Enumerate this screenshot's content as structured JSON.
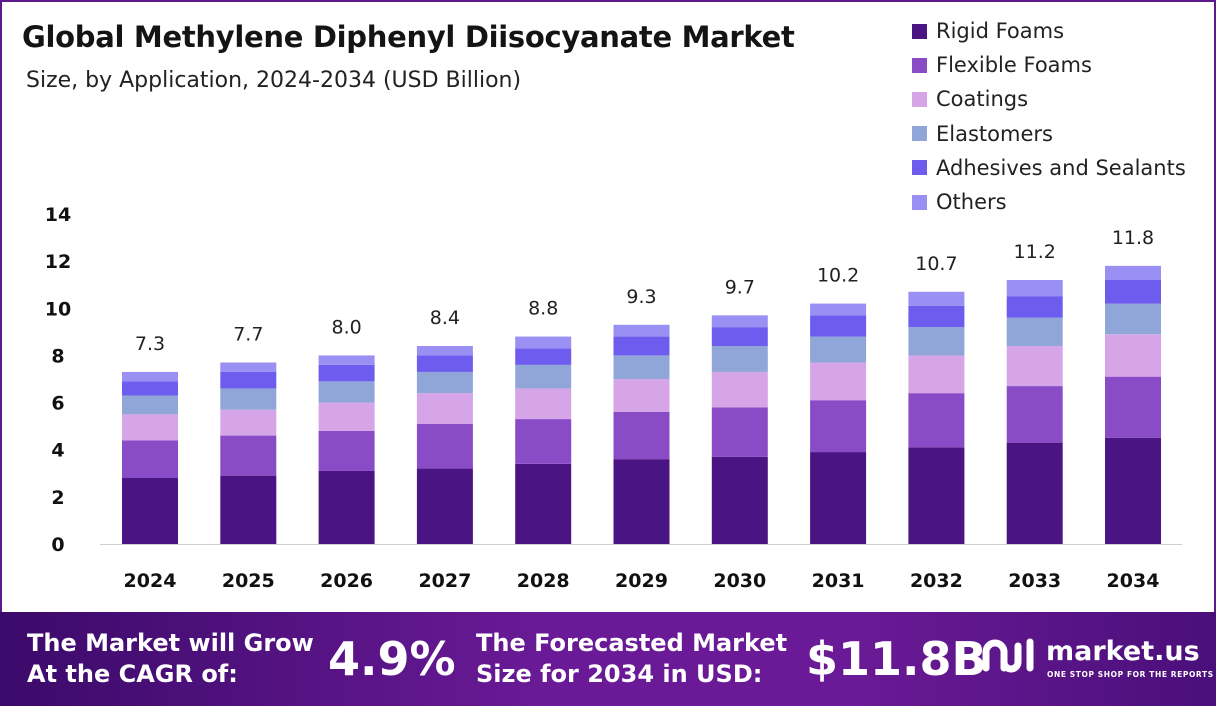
{
  "header": {
    "title": "Global Methylene Diphenyl Diisocyanate Market",
    "subtitle": "Size, by Application, 2024-2034 (USD Billion)"
  },
  "chart_data": {
    "type": "bar",
    "stacked": true,
    "categories": [
      "2024",
      "2025",
      "2026",
      "2027",
      "2028",
      "2029",
      "2030",
      "2031",
      "2032",
      "2033",
      "2034"
    ],
    "series": [
      {
        "name": "Rigid Foams",
        "color": "#4a1582",
        "values": [
          2.8,
          2.9,
          3.1,
          3.2,
          3.4,
          3.6,
          3.7,
          3.9,
          4.1,
          4.3,
          4.5
        ]
      },
      {
        "name": "Flexible Foams",
        "color": "#8a4cc6",
        "values": [
          1.6,
          1.7,
          1.7,
          1.9,
          1.9,
          2.0,
          2.1,
          2.2,
          2.3,
          2.4,
          2.6
        ]
      },
      {
        "name": "Coatings",
        "color": "#d6a5e8",
        "values": [
          1.1,
          1.1,
          1.2,
          1.3,
          1.3,
          1.4,
          1.5,
          1.6,
          1.6,
          1.7,
          1.8
        ]
      },
      {
        "name": "Elastomers",
        "color": "#91a6d8",
        "values": [
          0.8,
          0.9,
          0.9,
          0.9,
          1.0,
          1.0,
          1.1,
          1.1,
          1.2,
          1.2,
          1.3
        ]
      },
      {
        "name": "Adhesives and Sealants",
        "color": "#6d5cee",
        "values": [
          0.6,
          0.7,
          0.7,
          0.7,
          0.7,
          0.8,
          0.8,
          0.9,
          0.9,
          0.9,
          1.0
        ]
      },
      {
        "name": "Others",
        "color": "#9a8ff2",
        "values": [
          0.4,
          0.4,
          0.4,
          0.4,
          0.5,
          0.5,
          0.5,
          0.5,
          0.6,
          0.7,
          0.6
        ]
      }
    ],
    "totals": [
      "7.3",
      "7.7",
      "8.0",
      "8.4",
      "8.8",
      "9.3",
      "9.7",
      "10.2",
      "10.7",
      "11.2",
      "11.8"
    ],
    "yticks": [
      "0",
      "2",
      "4",
      "6",
      "8",
      "10",
      "12",
      "14"
    ],
    "ylim": [
      0,
      14
    ],
    "grid": false,
    "legend_position": "top-right"
  },
  "footer": {
    "cagr_label_line1": "The Market will Grow",
    "cagr_label_line2": "At the CAGR of:",
    "cagr_value": "4.9%",
    "forecast_label_line1": "The Forecasted Market",
    "forecast_label_line2": "Size for 2034 in USD:",
    "forecast_value": "$11.8B",
    "brand_name": "market.us",
    "brand_tagline": "ONE STOP SHOP FOR THE REPORTS"
  }
}
